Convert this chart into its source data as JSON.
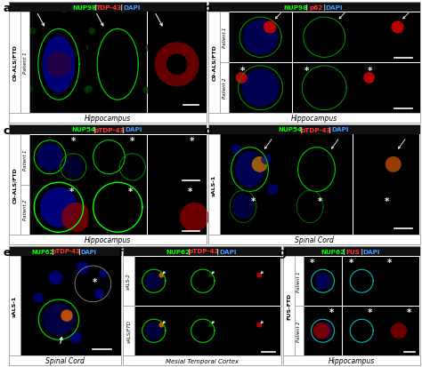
{
  "panels": {
    "a": {
      "letter": "a",
      "title": [
        [
          "NUP98",
          "#00ff00"
        ],
        [
          " | ",
          "#ffffff"
        ],
        [
          "TDP-43",
          "#ff3333"
        ],
        [
          " | ",
          "#ffffff"
        ],
        [
          "DAPI",
          "#4499ff"
        ]
      ],
      "side1": "C9-ALS/FTD",
      "side2": "Patient 1",
      "bottom": "Hippocampus",
      "rows": 1,
      "cols": 3
    },
    "b": {
      "letter": "b",
      "title": [
        [
          "NUP98",
          "#00ff00"
        ],
        [
          " | ",
          "#ffffff"
        ],
        [
          "p62",
          "#ff3333"
        ],
        [
          " | ",
          "#ffffff"
        ],
        [
          "DAPI",
          "#4499ff"
        ]
      ],
      "side1": "C9-ALS/FTD",
      "side2a": "Patient 1",
      "side2b": "Patient 2",
      "bottom": "Hippocampus",
      "rows": 2,
      "cols": 3
    },
    "c": {
      "letter": "c",
      "title": [
        [
          "NUP54",
          "#00ff00"
        ],
        [
          " | ",
          "#ffffff"
        ],
        [
          "pTDP-43",
          "#ff3333"
        ],
        [
          " | ",
          "#ffffff"
        ],
        [
          "DAPI",
          "#4499ff"
        ]
      ],
      "side1": "C9-ALS/FTD",
      "side2a": "Patient 1",
      "side2b": "Patient 2",
      "bottom": "Hippocampus",
      "rows": 2,
      "cols": 3
    },
    "d": {
      "letter": "d",
      "title": [
        [
          "NUP54",
          "#00ff00"
        ],
        [
          " | ",
          "#ffffff"
        ],
        [
          "pTDP-43",
          "#ff3333"
        ],
        [
          " | ",
          "#ffffff"
        ],
        [
          "DAPI",
          "#4499ff"
        ]
      ],
      "side1": "sALS-1",
      "bottom": "Spinal Cord",
      "rows": 1,
      "cols": 3
    },
    "e": {
      "letter": "e",
      "title": [
        [
          "NUP62",
          "#00ff00"
        ],
        [
          " | ",
          "#ffffff"
        ],
        [
          "pTDP-43",
          "#ff3333"
        ],
        [
          " | ",
          "#ffffff"
        ],
        [
          "DAPI",
          "#4499ff"
        ]
      ],
      "side1": "sALS-1",
      "bottom": "Spinal Cord",
      "rows": 1,
      "cols": 1
    },
    "f": {
      "letter": "f",
      "title": [
        [
          "NUP62",
          "#00ff00"
        ],
        [
          " | ",
          "#ffffff"
        ],
        [
          "pTDP-43",
          "#ff3333"
        ],
        [
          " | ",
          "#ffffff"
        ],
        [
          "DAPI",
          "#4499ff"
        ]
      ],
      "side1a": "sALS-2",
      "side1b": "sALS/FTD",
      "bottom": "Mesial Temporal Cortex",
      "rows": 2,
      "cols": 3
    },
    "g": {
      "letter": "g",
      "title": [
        [
          "NUP62",
          "#00ff00"
        ],
        [
          " | ",
          "#ffffff"
        ],
        [
          "FUS",
          "#ff3333"
        ],
        [
          " | ",
          "#ffffff"
        ],
        [
          "DAPI",
          "#4499ff"
        ]
      ],
      "side1": "FUS-FTD",
      "side2a": "Patient 1",
      "side2b": "Patient 2",
      "bottom": "Hippocampus",
      "rows": 2,
      "cols": 3
    }
  }
}
